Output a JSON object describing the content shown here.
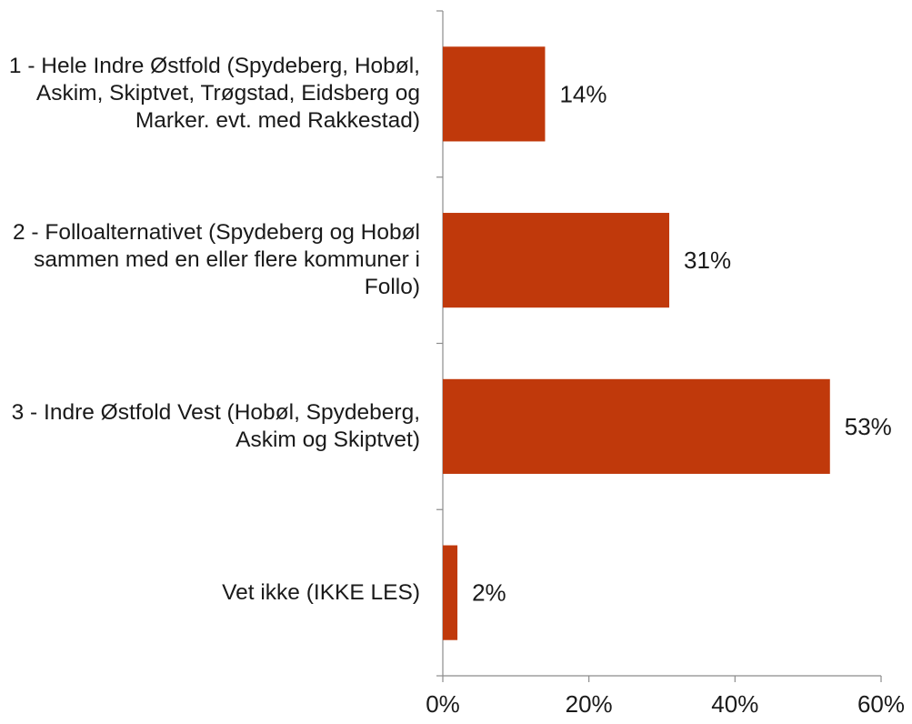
{
  "chart_data": {
    "type": "barh",
    "categories": [
      "1 - Hele Indre Østfold (Spydeberg, Hobøl, Askim, Skiptvet, Trøgstad, Eidsberg og Marker. evt. med Rakkestad)",
      "2 - Folloalternativet (Spydeberg og Hobøl sammen med en eller flere kommuner i Follo)",
      "3 - Indre Østfold Vest (Hobøl, Spydeberg, Askim og Skiptvet)",
      "Vet ikke (IKKE LES)"
    ],
    "values": [
      14,
      31,
      53,
      2
    ],
    "value_labels": [
      "14%",
      "31%",
      "53%",
      "2%"
    ],
    "color": "#c0390b",
    "xlim": [
      0,
      60
    ],
    "xticks": [
      {
        "value": 0,
        "label": "0%"
      },
      {
        "value": 20,
        "label": "20%"
      },
      {
        "value": 40,
        "label": "40%"
      },
      {
        "value": 60,
        "label": "60%"
      }
    ],
    "grid": false
  }
}
